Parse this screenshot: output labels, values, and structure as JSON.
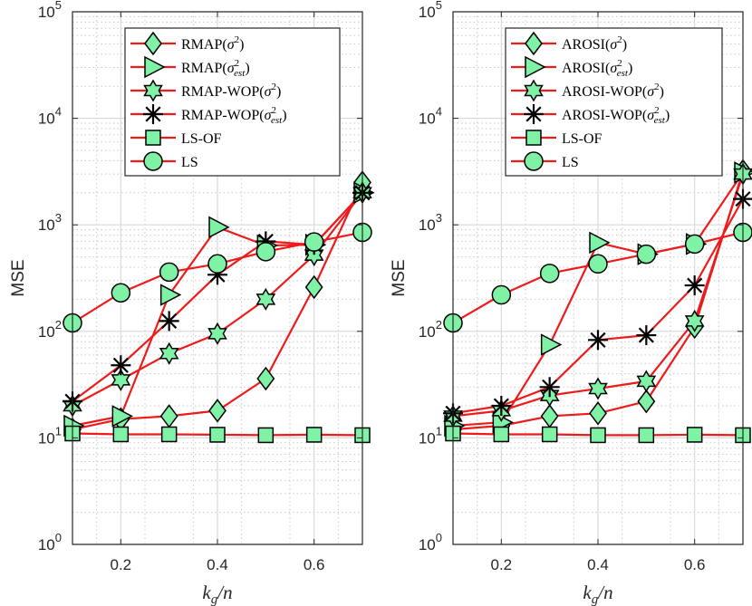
{
  "chart_data": [
    {
      "type": "line",
      "yscale": "log",
      "ylim": [
        1,
        100000
      ],
      "xlim": [
        0.1,
        0.7
      ],
      "xticks": [
        "0.2",
        "0.4",
        "0.6"
      ],
      "yticks": [
        {
          "base": "10",
          "exp": "0"
        },
        {
          "base": "10",
          "exp": "1"
        },
        {
          "base": "10",
          "exp": "2"
        },
        {
          "base": "10",
          "exp": "3"
        },
        {
          "base": "10",
          "exp": "4"
        },
        {
          "base": "10",
          "exp": "5"
        }
      ],
      "ylabel": "MSE",
      "xlabel": {
        "main": "k",
        "sub": "g",
        "rest": "/n"
      },
      "grid": true,
      "legend_position": "top-right",
      "line_color": "#ee1b1b",
      "marker_fill": "#7ff2a6",
      "series": [
        {
          "name": "RMAP(σ²)",
          "label": {
            "t": "RMAP(",
            "s": "σ",
            "sup": "2",
            "sub": "",
            "end": ")"
          },
          "marker": "diamond",
          "x": [
            0.1,
            0.2,
            0.3,
            0.4,
            0.5,
            0.6,
            0.7
          ],
          "y": [
            12,
            15,
            16,
            18,
            36,
            260,
            2500
          ]
        },
        {
          "name": "RMAP(σ²est)",
          "label": {
            "t": "RMAP(",
            "s": "σ",
            "sup": "2",
            "sub": "est",
            "end": ")"
          },
          "marker": "triangle-right",
          "x": [
            0.1,
            0.2,
            0.3,
            0.4,
            0.5,
            0.6,
            0.7
          ],
          "y": [
            13,
            16,
            220,
            950,
            640,
            650,
            2000
          ]
        },
        {
          "name": "RMAP-WOP(σ²)",
          "label": {
            "t": "RMAP-WOP(",
            "s": "σ",
            "sup": "2",
            "sub": "",
            "end": ")"
          },
          "marker": "hexagram",
          "x": [
            0.1,
            0.2,
            0.3,
            0.4,
            0.5,
            0.6,
            0.7
          ],
          "y": [
            20,
            35,
            62,
            95,
            200,
            520,
            2000
          ]
        },
        {
          "name": "RMAP-WOP(σ²est)",
          "label": {
            "t": "RMAP-WOP(",
            "s": "σ",
            "sup": "2",
            "sub": "est",
            "end": ")"
          },
          "marker": "asterisk",
          "x": [
            0.1,
            0.2,
            0.3,
            0.4,
            0.5,
            0.6,
            0.7
          ],
          "y": [
            22,
            48,
            125,
            340,
            700,
            650,
            2000
          ]
        },
        {
          "name": "LS-OF",
          "label": {
            "t": "LS-OF",
            "s": "",
            "sup": "",
            "sub": "",
            "end": ""
          },
          "marker": "square",
          "x": [
            0.1,
            0.2,
            0.3,
            0.4,
            0.5,
            0.6,
            0.7
          ],
          "y": [
            11,
            10.8,
            10.8,
            10.7,
            10.6,
            10.7,
            10.6
          ]
        },
        {
          "name": "LS",
          "label": {
            "t": "LS",
            "s": "",
            "sup": "",
            "sub": "",
            "end": ""
          },
          "marker": "circle",
          "x": [
            0.1,
            0.2,
            0.3,
            0.4,
            0.5,
            0.6,
            0.7
          ],
          "y": [
            120,
            230,
            360,
            430,
            560,
            690,
            850
          ]
        }
      ]
    },
    {
      "type": "line",
      "yscale": "log",
      "ylim": [
        1,
        100000
      ],
      "xlim": [
        0.1,
        0.7
      ],
      "xticks": [
        "0.2",
        "0.4",
        "0.6"
      ],
      "yticks": [
        {
          "base": "10",
          "exp": "0"
        },
        {
          "base": "10",
          "exp": "1"
        },
        {
          "base": "10",
          "exp": "2"
        },
        {
          "base": "10",
          "exp": "3"
        },
        {
          "base": "10",
          "exp": "4"
        },
        {
          "base": "10",
          "exp": "5"
        }
      ],
      "ylabel": "MSE",
      "xlabel": {
        "main": "k",
        "sub": "g",
        "rest": "/n"
      },
      "grid": true,
      "legend_position": "top-right",
      "line_color": "#ee1b1b",
      "marker_fill": "#7ff2a6",
      "series": [
        {
          "name": "AROSI(σ²)",
          "label": {
            "t": "AROSI(",
            "s": "σ",
            "sup": "2",
            "sub": "",
            "end": ")"
          },
          "marker": "diamond",
          "x": [
            0.1,
            0.2,
            0.3,
            0.4,
            0.5,
            0.6,
            0.7
          ],
          "y": [
            12,
            13,
            16,
            17,
            22,
            110,
            3200
          ]
        },
        {
          "name": "AROSI(σ²est)",
          "label": {
            "t": "AROSI(",
            "s": "σ",
            "sup": "2",
            "sub": "est",
            "end": ")"
          },
          "marker": "triangle-right",
          "x": [
            0.1,
            0.2,
            0.3,
            0.4,
            0.5,
            0.6,
            0.7
          ],
          "y": [
            13,
            14,
            75,
            680,
            530,
            660,
            3100
          ]
        },
        {
          "name": "AROSI-WOP(σ²)",
          "label": {
            "t": "AROSI-WOP(",
            "s": "σ",
            "sup": "2",
            "sub": "",
            "end": ")"
          },
          "marker": "hexagram",
          "x": [
            0.1,
            0.2,
            0.3,
            0.4,
            0.5,
            0.6,
            0.7
          ],
          "y": [
            16,
            18,
            25,
            29,
            34,
            125,
            3000
          ]
        },
        {
          "name": "AROSI-WOP(σ²est)",
          "label": {
            "t": "AROSI-WOP(",
            "s": "σ",
            "sup": "2",
            "sub": "est",
            "end": ")"
          },
          "marker": "asterisk",
          "x": [
            0.1,
            0.2,
            0.3,
            0.4,
            0.5,
            0.6,
            0.7
          ],
          "y": [
            17,
            20,
            30,
            83,
            92,
            270,
            1750
          ]
        },
        {
          "name": "LS-OF",
          "label": {
            "t": "LS-OF",
            "s": "",
            "sup": "",
            "sub": "",
            "end": ""
          },
          "marker": "square",
          "x": [
            0.1,
            0.2,
            0.3,
            0.4,
            0.5,
            0.6,
            0.7
          ],
          "y": [
            11,
            10.8,
            10.8,
            10.6,
            10.6,
            10.7,
            10.6
          ]
        },
        {
          "name": "LS",
          "label": {
            "t": "LS",
            "s": "",
            "sup": "",
            "sub": "",
            "end": ""
          },
          "marker": "circle",
          "x": [
            0.1,
            0.2,
            0.3,
            0.4,
            0.5,
            0.6,
            0.7
          ],
          "y": [
            120,
            220,
            350,
            430,
            530,
            660,
            850
          ]
        }
      ]
    }
  ]
}
